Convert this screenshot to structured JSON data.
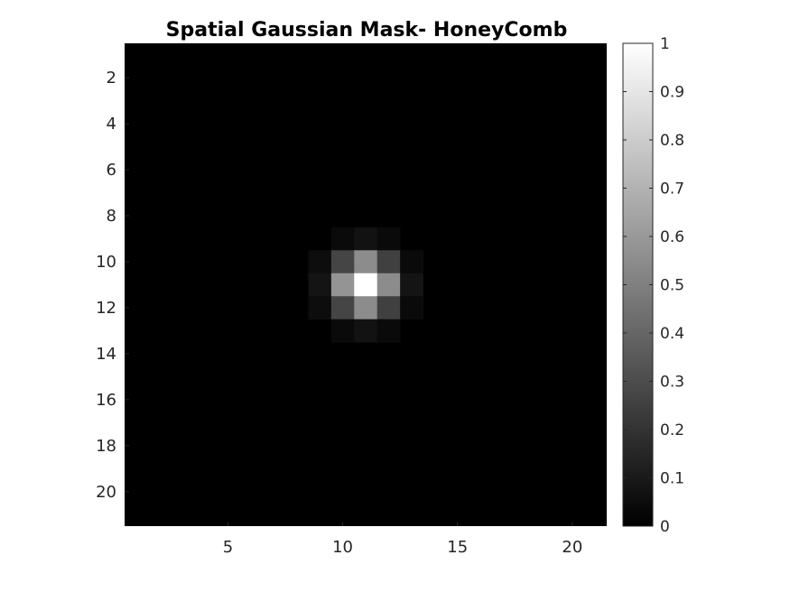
{
  "chart_data": {
    "type": "heatmap",
    "title": "Spatial Gaussian Mask- HoneyComb",
    "xlabel": "",
    "ylabel": "",
    "xlim": [
      0.5,
      21.5
    ],
    "ylim": [
      0.5,
      21.5
    ],
    "y_direction": "reversed",
    "x_ticks": [
      5,
      10,
      15,
      20
    ],
    "y_ticks": [
      2,
      4,
      6,
      8,
      10,
      12,
      14,
      16,
      18,
      20
    ],
    "colormap": "gray",
    "clim": [
      0,
      1
    ],
    "colorbar": {
      "position": "right",
      "ticks": [
        0,
        0.1,
        0.2,
        0.3,
        0.4,
        0.5,
        0.6,
        0.7,
        0.8,
        0.9,
        1
      ],
      "tick_labels": [
        "0",
        "0.1",
        "0.2",
        "0.3",
        "0.4",
        "0.5",
        "0.6",
        "0.7",
        "0.8",
        "0.9",
        "1"
      ]
    },
    "background_value": 0,
    "grid": false,
    "cells": [
      {
        "row": 9,
        "col": 10,
        "value": 0.04
      },
      {
        "row": 9,
        "col": 11,
        "value": 0.07
      },
      {
        "row": 9,
        "col": 12,
        "value": 0.04
      },
      {
        "row": 10,
        "col": 9,
        "value": 0.05
      },
      {
        "row": 10,
        "col": 10,
        "value": 0.27
      },
      {
        "row": 10,
        "col": 11,
        "value": 0.55
      },
      {
        "row": 10,
        "col": 12,
        "value": 0.25
      },
      {
        "row": 10,
        "col": 13,
        "value": 0.04
      },
      {
        "row": 11,
        "col": 9,
        "value": 0.08
      },
      {
        "row": 11,
        "col": 10,
        "value": 0.58
      },
      {
        "row": 11,
        "col": 11,
        "value": 1.0
      },
      {
        "row": 11,
        "col": 12,
        "value": 0.55
      },
      {
        "row": 11,
        "col": 13,
        "value": 0.08
      },
      {
        "row": 12,
        "col": 9,
        "value": 0.05
      },
      {
        "row": 12,
        "col": 10,
        "value": 0.27
      },
      {
        "row": 12,
        "col": 11,
        "value": 0.55
      },
      {
        "row": 12,
        "col": 12,
        "value": 0.25
      },
      {
        "row": 12,
        "col": 13,
        "value": 0.04
      },
      {
        "row": 13,
        "col": 10,
        "value": 0.04
      },
      {
        "row": 13,
        "col": 11,
        "value": 0.07
      },
      {
        "row": 13,
        "col": 12,
        "value": 0.04
      }
    ]
  }
}
